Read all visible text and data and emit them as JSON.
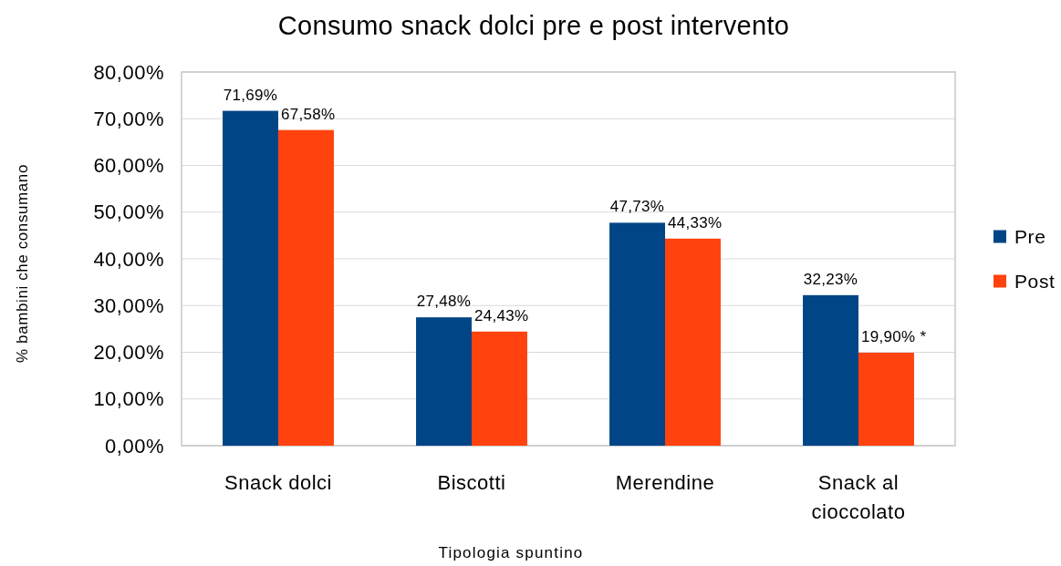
{
  "chart_data": {
    "type": "bar",
    "title": "Consumo snack dolci pre e post intervento",
    "xlabel": "Tipologia spuntino",
    "ylabel": "% bambini che consumano",
    "categories": [
      "Snack dolci",
      "Biscotti",
      "Merendine",
      "Snack al cioccolato"
    ],
    "series": [
      {
        "name": "Pre",
        "color": "#004586",
        "values": [
          71.69,
          27.48,
          47.73,
          32.23
        ],
        "value_labels": [
          "71,69%",
          "27,48%",
          "47,73%",
          "32,23%"
        ]
      },
      {
        "name": "Post",
        "color": "#ff420e",
        "values": [
          67.58,
          24.43,
          44.33,
          19.9
        ],
        "value_labels": [
          "67,58%",
          "24,43%",
          "44,33%",
          "19,90% *"
        ]
      }
    ],
    "ylim": [
      0,
      80
    ],
    "yticks": [
      {
        "value": 0,
        "label": "0,00%"
      },
      {
        "value": 10,
        "label": "10,00%"
      },
      {
        "value": 20,
        "label": "20,00%"
      },
      {
        "value": 30,
        "label": "30,00%"
      },
      {
        "value": 40,
        "label": "40,00%"
      },
      {
        "value": 50,
        "label": "50,00%"
      },
      {
        "value": 60,
        "label": "60,00%"
      },
      {
        "value": 70,
        "label": "70,00%"
      },
      {
        "value": 80,
        "label": "80,00%"
      }
    ],
    "grid": "y",
    "legend": "right"
  }
}
